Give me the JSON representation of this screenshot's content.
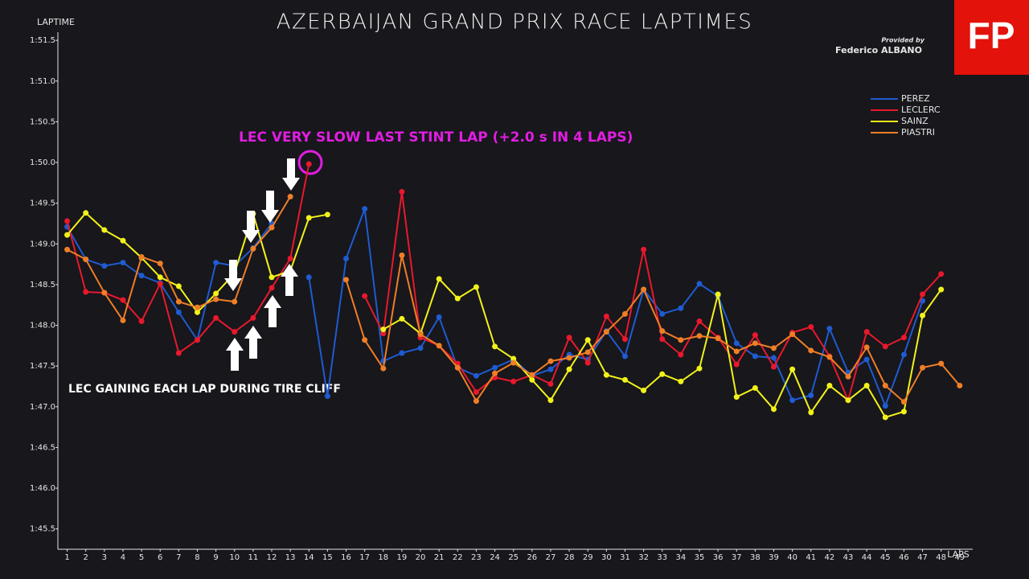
{
  "chart_data": {
    "type": "line",
    "title": "AZERBAIJAN GRAND PRIX RACE LAPTIMES",
    "credit_label": "Provided by",
    "credit_name": "Federico ALBANO",
    "logo": "FP",
    "y_label": "LAPTIME",
    "x_label": "LAPS",
    "annotations": [
      "LEC VERY SLOW LAST STINT LAP (+2.0 s IN 4 LAPS)",
      "LEC GAINING EACH LAP DURING TIRE CLIFF"
    ],
    "x": [
      1,
      2,
      3,
      4,
      5,
      6,
      7,
      8,
      9,
      10,
      11,
      12,
      13,
      14,
      15,
      16,
      17,
      18,
      19,
      20,
      21,
      22,
      23,
      24,
      25,
      26,
      27,
      28,
      29,
      30,
      31,
      32,
      33,
      34,
      35,
      36,
      37,
      38,
      39,
      40,
      41,
      42,
      43,
      44,
      45,
      46,
      47,
      48,
      49
    ],
    "xlim": [
      0.5,
      49.7
    ],
    "xticks": [
      1,
      2,
      3,
      4,
      5,
      6,
      7,
      8,
      9,
      10,
      11,
      12,
      13,
      14,
      15,
      16,
      17,
      18,
      19,
      20,
      21,
      22,
      23,
      24,
      25,
      26,
      27,
      28,
      29,
      30,
      31,
      32,
      33,
      34,
      35,
      36,
      37,
      38,
      39,
      40,
      41,
      42,
      43,
      44,
      45,
      46,
      47,
      48,
      49
    ],
    "ylim": [
      105.25,
      111.6
    ],
    "yticks": [
      {
        "value": 105.5,
        "label": "1:45.5"
      },
      {
        "value": 106.0,
        "label": "1:46.0"
      },
      {
        "value": 106.5,
        "label": "1:46.5"
      },
      {
        "value": 107.0,
        "label": "1:47.0"
      },
      {
        "value": 107.5,
        "label": "1:47.5"
      },
      {
        "value": 108.0,
        "label": "1:48.0"
      },
      {
        "value": 108.5,
        "label": "1:48.5"
      },
      {
        "value": 109.0,
        "label": "1:49.0"
      },
      {
        "value": 109.5,
        "label": "1:49.5"
      },
      {
        "value": 110.0,
        "label": "1:50.0"
      },
      {
        "value": 110.5,
        "label": "1:50.5"
      },
      {
        "value": 111.0,
        "label": "1:51.0"
      },
      {
        "value": 111.5,
        "label": "1:51.5"
      }
    ],
    "series": [
      {
        "name": "PEREZ",
        "color": "#1f5bd1",
        "values": [
          109.21,
          108.81,
          108.73,
          108.77,
          108.61,
          108.52,
          108.16,
          107.82,
          108.77,
          108.73,
          108.95,
          109.25,
          null,
          108.59,
          107.13,
          108.82,
          109.43,
          107.56,
          107.66,
          107.72,
          108.1,
          107.48,
          107.38,
          107.48,
          107.58,
          107.38,
          107.46,
          107.64,
          107.58,
          107.93,
          107.62,
          108.44,
          108.14,
          108.21,
          108.51,
          108.36,
          107.78,
          107.62,
          107.6,
          107.08,
          107.14,
          107.96,
          107.42,
          107.58,
          107.01,
          107.64,
          108.3,
          null,
          null
        ]
      },
      {
        "name": "LECLERC",
        "color": "#e8192c",
        "values": [
          109.28,
          108.41,
          108.4,
          108.31,
          108.05,
          108.51,
          107.66,
          107.82,
          108.09,
          107.92,
          108.09,
          108.46,
          108.82,
          109.98,
          null,
          null,
          108.36,
          107.9,
          109.64,
          107.85,
          107.75,
          107.53,
          107.18,
          107.36,
          107.31,
          107.39,
          107.28,
          107.85,
          107.54,
          108.11,
          107.83,
          108.93,
          107.83,
          107.64,
          108.05,
          107.85,
          107.52,
          107.88,
          107.49,
          107.91,
          107.98,
          107.62,
          107.08,
          107.92,
          107.74,
          107.85,
          108.38,
          108.63,
          null
        ]
      },
      {
        "name": "SAINZ",
        "color": "#f2f21a",
        "values": [
          109.11,
          109.38,
          109.17,
          109.04,
          108.83,
          108.59,
          108.48,
          108.16,
          108.39,
          108.64,
          109.37,
          108.59,
          108.67,
          109.32,
          109.36,
          null,
          null,
          107.95,
          108.08,
          107.9,
          108.57,
          108.33,
          108.47,
          107.74,
          107.59,
          107.33,
          107.08,
          107.46,
          107.82,
          107.39,
          107.33,
          107.2,
          107.4,
          107.31,
          107.47,
          108.38,
          107.12,
          107.23,
          106.97,
          107.46,
          106.93,
          107.26,
          107.08,
          107.26,
          106.87,
          106.94,
          108.12,
          108.44,
          null
        ]
      },
      {
        "name": "PIASTRI",
        "color": "#f07e26",
        "values": [
          108.93,
          108.81,
          108.4,
          108.06,
          108.84,
          108.76,
          108.29,
          108.22,
          108.32,
          108.29,
          108.94,
          109.2,
          109.58,
          null,
          null,
          108.56,
          107.82,
          107.47,
          108.86,
          107.89,
          107.75,
          107.48,
          107.07,
          107.41,
          107.54,
          107.39,
          107.56,
          107.6,
          107.67,
          107.92,
          108.14,
          108.44,
          107.93,
          107.82,
          107.87,
          107.84,
          107.68,
          107.78,
          107.72,
          107.89,
          107.69,
          107.61,
          107.37,
          107.73,
          107.26,
          107.06,
          107.48,
          107.53,
          107.26
        ]
      }
    ]
  }
}
